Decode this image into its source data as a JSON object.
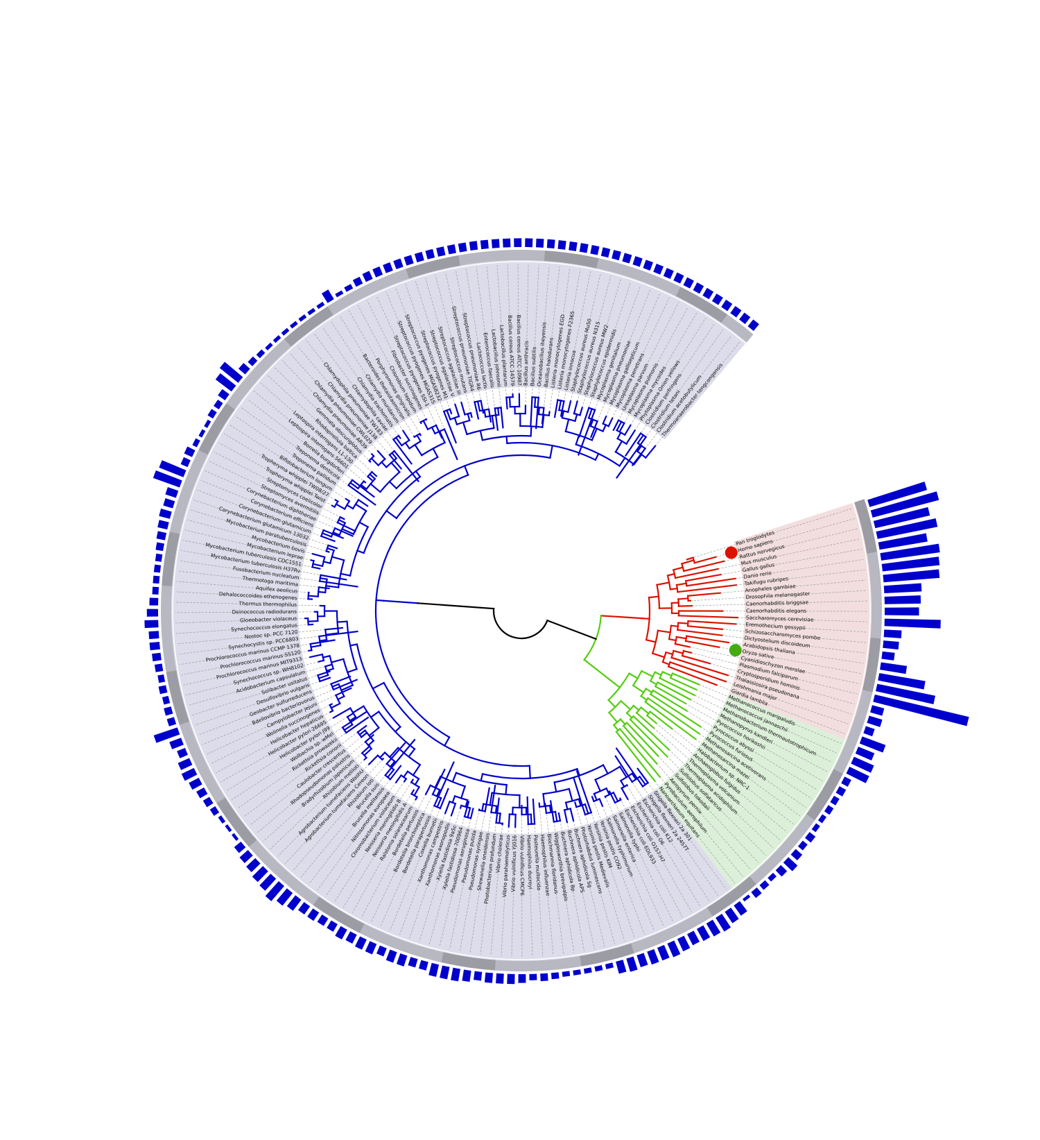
{
  "colors": {
    "bacteria": "#0000cc",
    "eukaryota": "#dd1100",
    "archaea": "#55cc11",
    "root": "#000000",
    "bacteria_bg": "#dcdcea",
    "eukaryota_bg": "#f2dede",
    "archaea_bg": "#dcefd9",
    "bar": "#0000cc",
    "ring": "#b8b8c2",
    "marker_human": "#dd1100",
    "marker_plant": "#44aa11"
  },
  "highlighted_leaves": [
    {
      "taxon": "Homo sapiens",
      "marker": "red-dot"
    },
    {
      "taxon": "Oryza sativa",
      "marker": "green-dot"
    }
  ],
  "leaves": [
    {
      "name": "Pan troglodytes",
      "clade": "eukaryota",
      "bar": 96
    },
    {
      "name": "Homo sapiens",
      "clade": "eukaryota",
      "bar": 110
    },
    {
      "name": "Rattus norvegicus",
      "clade": "eukaryota",
      "bar": 90
    },
    {
      "name": "Mus musculus",
      "clade": "eukaryota",
      "bar": 98
    },
    {
      "name": "Gallus gallus",
      "clade": "eukaryota",
      "bar": 78
    },
    {
      "name": "Danio rerio",
      "clade": "eukaryota",
      "bar": 95
    },
    {
      "name": "Takifugu rubripes",
      "clade": "eukaryota",
      "bar": 92
    },
    {
      "name": "Anopheles gambiae",
      "clade": "eukaryota",
      "bar": 90
    },
    {
      "name": "Drosophila melanogaster",
      "clade": "eukaryota",
      "bar": 60
    },
    {
      "name": "Caenorhabditis briggsae",
      "clade": "eukaryota",
      "bar": 58
    },
    {
      "name": "Caenorhabditis elegans",
      "clade": "eukaryota",
      "bar": 55
    },
    {
      "name": "Saccharomyces cerevisiae",
      "clade": "eukaryota",
      "bar": 90
    },
    {
      "name": "Eremothecium gossypii",
      "clade": "eukaryota",
      "bar": 28
    },
    {
      "name": "Schizosaccharomyces pombe",
      "clade": "eukaryota",
      "bar": 25
    },
    {
      "name": "Dictyostelium discoideum",
      "clade": "eukaryota",
      "bar": 20
    },
    {
      "name": "Arabidopsis thaliana",
      "clade": "eukaryota",
      "bar": 42
    },
    {
      "name": "Oryza sativa",
      "clade": "eukaryota",
      "bar": 75
    },
    {
      "name": "Cyanidioschyzon merolae",
      "clade": "eukaryota",
      "bar": 95
    },
    {
      "name": "Plasmodium falciparum",
      "clade": "eukaryota",
      "bar": 155
    },
    {
      "name": "Cryptosporidium hominis",
      "clade": "eukaryota",
      "bar": 20
    },
    {
      "name": "Thalassiosira pseudonana",
      "clade": "eukaryota",
      "bar": 22
    },
    {
      "name": "Leishmania major",
      "clade": "eukaryota",
      "bar": 15
    },
    {
      "name": "Giardia lamblia",
      "clade": "eukaryota",
      "bar": 40
    },
    {
      "name": "Methanococcus maripaludis",
      "clade": "archaea",
      "bar": 28
    },
    {
      "name": "Methanococcus jannaschii",
      "clade": "archaea",
      "bar": 35
    },
    {
      "name": "Methanobacterium thermautotrophicum",
      "clade": "archaea",
      "bar": 35
    },
    {
      "name": "Methanopyrus kandleri",
      "clade": "archaea",
      "bar": 12
    },
    {
      "name": "Pyrococcus horikoshii",
      "clade": "archaea",
      "bar": 12
    },
    {
      "name": "Pyrococcus abyssi",
      "clade": "archaea",
      "bar": 10
    },
    {
      "name": "Pyrococcus furiosus",
      "clade": "archaea",
      "bar": 10
    },
    {
      "name": "Methanosarcina acetivorans",
      "clade": "archaea",
      "bar": 8
    },
    {
      "name": "Methanosarcina mazei",
      "clade": "archaea",
      "bar": 8
    },
    {
      "name": "Halobacterium sp. NRC-1",
      "clade": "archaea",
      "bar": 12
    },
    {
      "name": "Archaeoglobus fulgidus",
      "clade": "archaea",
      "bar": 10
    },
    {
      "name": "Thermoplasma volcanium",
      "clade": "archaea",
      "bar": 14
    },
    {
      "name": "Thermoplasma acidophilum",
      "clade": "archaea",
      "bar": 20
    },
    {
      "name": "Sulfolobus solfataricus",
      "clade": "archaea",
      "bar": 14
    },
    {
      "name": "Sulfolobus tokodaii",
      "clade": "archaea",
      "bar": 8
    },
    {
      "name": "Aeropyrum pernix",
      "clade": "archaea",
      "bar": 10
    },
    {
      "name": "Pyrobaculum aerophilum",
      "clade": "archaea",
      "bar": 12
    },
    {
      "name": "Nanoarchaeum equitans",
      "clade": "archaea",
      "bar": 5
    },
    {
      "name": "Shigella flexneri 2a 301",
      "clade": "bacteria",
      "bar": 20
    },
    {
      "name": "Shigella flexneri 2a 2457T",
      "clade": "bacteria",
      "bar": 22
    },
    {
      "name": "Escherichia coli K12",
      "clade": "bacteria",
      "bar": 26
    },
    {
      "name": "Escherichia coli O6",
      "clade": "bacteria",
      "bar": 24
    },
    {
      "name": "Escherichia coli O157:H7",
      "clade": "bacteria",
      "bar": 22
    },
    {
      "name": "Escherichia coli EDL933",
      "clade": "bacteria",
      "bar": 20
    },
    {
      "name": "Salmonella typhi",
      "clade": "bacteria",
      "bar": 22
    },
    {
      "name": "Salmonella enterica",
      "clade": "bacteria",
      "bar": 24
    },
    {
      "name": "Salmonella typhimurium",
      "clade": "bacteria",
      "bar": 22
    },
    {
      "name": "Yersinia pestis CO92",
      "clade": "bacteria",
      "bar": 22
    },
    {
      "name": "Yersinia pestis KIM",
      "clade": "bacteria",
      "bar": 20
    },
    {
      "name": "Yersinia pestis Medievalis",
      "clade": "bacteria",
      "bar": 22
    },
    {
      "name": "Photorhabdus luminescens",
      "clade": "bacteria",
      "bar": 20
    },
    {
      "name": "Buchnera aphidicola Sg",
      "clade": "bacteria",
      "bar": 8
    },
    {
      "name": "Buchnera aphidicola APS",
      "clade": "bacteria",
      "bar": 8
    },
    {
      "name": "Buchnera aphidicola Bp",
      "clade": "bacteria",
      "bar": 8
    },
    {
      "name": "Wigglesworthia brevipalpis",
      "clade": "bacteria",
      "bar": 8
    },
    {
      "name": "Blochmannia floridanus",
      "clade": "bacteria",
      "bar": 8
    },
    {
      "name": "Haemophilus influenzae",
      "clade": "bacteria",
      "bar": 10
    },
    {
      "name": "Pasteurella multocida",
      "clade": "bacteria",
      "bar": 12
    },
    {
      "name": "Haemophilus ducreyi",
      "clade": "bacteria",
      "bar": 10
    },
    {
      "name": "Vibrio vulnificus CMCP6",
      "clade": "bacteria",
      "bar": 14
    },
    {
      "name": "Vibrio vulnificus YJ016",
      "clade": "bacteria",
      "bar": 16
    },
    {
      "name": "Vibrio parahaemolyticus",
      "clade": "bacteria",
      "bar": 16
    },
    {
      "name": "Vibrio cholerae",
      "clade": "bacteria",
      "bar": 16
    },
    {
      "name": "Photobacterium profundum",
      "clade": "bacteria",
      "bar": 14
    },
    {
      "name": "Shewanella oneidensis",
      "clade": "bacteria",
      "bar": 18
    },
    {
      "name": "Pseudomonas syringae",
      "clade": "bacteria",
      "bar": 20
    },
    {
      "name": "Pseudomonas putida",
      "clade": "bacteria",
      "bar": 20
    },
    {
      "name": "Pseudomonas aeruginosa",
      "clade": "bacteria",
      "bar": 20
    },
    {
      "name": "Xylella fastidiosa 700964",
      "clade": "bacteria",
      "bar": 14
    },
    {
      "name": "Xylella fastidiosa 9a5c",
      "clade": "bacteria",
      "bar": 14
    },
    {
      "name": "Xanthomonas axonopodis",
      "clade": "bacteria",
      "bar": 18
    },
    {
      "name": "Xanthomonas campestris",
      "clade": "bacteria",
      "bar": 18
    },
    {
      "name": "Coxiella burnetii",
      "clade": "bacteria",
      "bar": 14
    },
    {
      "name": "Bordetella parapertussis",
      "clade": "bacteria",
      "bar": 18
    },
    {
      "name": "Bordetella bronchiseptica",
      "clade": "bacteria",
      "bar": 18
    },
    {
      "name": "Bordetella pertussis",
      "clade": "bacteria",
      "bar": 16
    },
    {
      "name": "Ralstonia solanacearum",
      "clade": "bacteria",
      "bar": 18
    },
    {
      "name": "Neisseria meningitidis A",
      "clade": "bacteria",
      "bar": 14
    },
    {
      "name": "Neisseria meningitidis B",
      "clade": "bacteria",
      "bar": 14
    },
    {
      "name": "Chromobacterium violaceum",
      "clade": "bacteria",
      "bar": 16
    },
    {
      "name": "Nitrosomonas europaea",
      "clade": "bacteria",
      "bar": 16
    },
    {
      "name": "Brucella melitensis",
      "clade": "bacteria",
      "bar": 22
    },
    {
      "name": "Brucella suis",
      "clade": "bacteria",
      "bar": 26
    },
    {
      "name": "Rhizobium loti",
      "clade": "bacteria",
      "bar": 32
    },
    {
      "name": "Agrobacterium tumefaciens Cereon",
      "clade": "bacteria",
      "bar": 26
    },
    {
      "name": "Agrobacterium tumefaciens WashU",
      "clade": "bacteria",
      "bar": 24
    },
    {
      "name": "Rhizobium meliloti",
      "clade": "bacteria",
      "bar": 20
    },
    {
      "name": "Bradyrhizobium japonicum",
      "clade": "bacteria",
      "bar": 18
    },
    {
      "name": "Rhodopseudomonas palustris",
      "clade": "bacteria",
      "bar": 14
    },
    {
      "name": "Caulobacter crescentus",
      "clade": "bacteria",
      "bar": 5
    },
    {
      "name": "Rickettsia conorii",
      "clade": "bacteria",
      "bar": 5
    },
    {
      "name": "Rickettsia prowazekii",
      "clade": "bacteria",
      "bar": 6
    },
    {
      "name": "Wolbachia sp. wMel",
      "clade": "bacteria",
      "bar": 10
    },
    {
      "name": "Helicobacter pylori J99",
      "clade": "bacteria",
      "bar": 12
    },
    {
      "name": "Helicobacter pylori 26695",
      "clade": "bacteria",
      "bar": 14
    },
    {
      "name": "Helicobacter hepaticus",
      "clade": "bacteria",
      "bar": 18
    },
    {
      "name": "Wolinella succinogenes",
      "clade": "bacteria",
      "bar": 22
    },
    {
      "name": "Campylobacter jejuni",
      "clade": "bacteria",
      "bar": 20
    },
    {
      "name": "Bdellovibrio bacteriovorus",
      "clade": "bacteria",
      "bar": 14
    },
    {
      "name": "Geobacter sulfurreducens",
      "clade": "bacteria",
      "bar": 20
    },
    {
      "name": "Desulfovibrio vulgaris",
      "clade": "bacteria",
      "bar": 40
    },
    {
      "name": "Solibacter usitatus",
      "clade": "bacteria",
      "bar": 12
    },
    {
      "name": "Acidobacterium capsulatum",
      "clade": "bacteria",
      "bar": 12
    },
    {
      "name": "Synechococcus sp. WH8102",
      "clade": "bacteria",
      "bar": 10
    },
    {
      "name": "Prochlorococcus marinus MIT9313",
      "clade": "bacteria",
      "bar": 12
    },
    {
      "name": "Prochlorococcus marinus SS120",
      "clade": "bacteria",
      "bar": 10
    },
    {
      "name": "Prochlorococcus marinus CCMP 1378",
      "clade": "bacteria",
      "bar": 12
    },
    {
      "name": "Synechocystis sp. PCC6803",
      "clade": "bacteria",
      "bar": 14
    },
    {
      "name": "Nostoc sp. PCC 7120",
      "clade": "bacteria",
      "bar": 16
    },
    {
      "name": "Synechococcus elongatus",
      "clade": "bacteria",
      "bar": 16
    },
    {
      "name": "Gloeobacter violaceus",
      "clade": "bacteria",
      "bar": 22
    },
    {
      "name": "Deinococcus radiodurans",
      "clade": "bacteria",
      "bar": 18
    },
    {
      "name": "Thermus thermophilus",
      "clade": "bacteria",
      "bar": 14
    },
    {
      "name": "Dehalococcoides ethenogenes",
      "clade": "bacteria",
      "bar": 10
    },
    {
      "name": "Aquifex aeolicus",
      "clade": "bacteria",
      "bar": 10
    },
    {
      "name": "Thermotoga maritima",
      "clade": "bacteria",
      "bar": 10
    },
    {
      "name": "Fusobacterium nucleatum",
      "clade": "bacteria",
      "bar": 10
    },
    {
      "name": "Mycobacterium tuberculosis H37Rv",
      "clade": "bacteria",
      "bar": 12
    },
    {
      "name": "Mycobacterium tuberculosis CDC1551",
      "clade": "bacteria",
      "bar": 14
    },
    {
      "name": "Mycobacterium leprae",
      "clade": "bacteria",
      "bar": 16
    },
    {
      "name": "Mycobacterium bovis",
      "clade": "bacteria",
      "bar": 18
    },
    {
      "name": "Mycobacterium paratuberculosis",
      "clade": "bacteria",
      "bar": 16
    },
    {
      "name": "Corynebacterium glutamicum 13032",
      "clade": "bacteria",
      "bar": 18
    },
    {
      "name": "Corynebacterium glutamicum",
      "clade": "bacteria",
      "bar": 45
    },
    {
      "name": "Corynebacterium efficiens",
      "clade": "bacteria",
      "bar": 42
    },
    {
      "name": "Corynebacterium diphtheriae",
      "clade": "bacteria",
      "bar": 12
    },
    {
      "name": "Streptomyces avermitilis",
      "clade": "bacteria",
      "bar": 14
    },
    {
      "name": "Streptomyces coelicolor",
      "clade": "bacteria",
      "bar": 8
    },
    {
      "name": "Tropheryma whipplei Twist",
      "clade": "bacteria",
      "bar": 6
    },
    {
      "name": "Tropheryma whipplei TW08/27",
      "clade": "bacteria",
      "bar": 6
    },
    {
      "name": "Bifidobacterium longum",
      "clade": "bacteria",
      "bar": 10
    },
    {
      "name": "Treponema pallidum",
      "clade": "bacteria",
      "bar": 10
    },
    {
      "name": "Treponema denticola",
      "clade": "bacteria",
      "bar": 14
    },
    {
      "name": "Borrelia burgdorferi",
      "clade": "bacteria",
      "bar": 32
    },
    {
      "name": "Leptospira interrogans 56601",
      "clade": "bacteria",
      "bar": 38
    },
    {
      "name": "Leptospira interrogans L1-130",
      "clade": "bacteria",
      "bar": 14
    },
    {
      "name": "Rhodopirellula baltica",
      "clade": "bacteria",
      "bar": 10
    },
    {
      "name": "Gemmata obscuriglobus",
      "clade": "bacteria",
      "bar": 8
    },
    {
      "name": "Chlamydia pneumoniae AR39",
      "clade": "bacteria",
      "bar": 6
    },
    {
      "name": "Chlamydia pneumoniae CWL029",
      "clade": "bacteria",
      "bar": 6
    },
    {
      "name": "Chlamydia pneumoniae J138",
      "clade": "bacteria",
      "bar": 6
    },
    {
      "name": "Chlamydophila pneumoniae TW183",
      "clade": "bacteria",
      "bar": 6
    },
    {
      "name": "Chlamydophila caviae",
      "clade": "bacteria",
      "bar": 6
    },
    {
      "name": "Chlamydia trachomatis",
      "clade": "bacteria",
      "bar": 6
    },
    {
      "name": "Chlamydia muridarum",
      "clade": "bacteria",
      "bar": 6
    },
    {
      "name": "Bacteroides thetaiotaomicron",
      "clade": "bacteria",
      "bar": 18
    },
    {
      "name": "Porphyromonas gingivalis",
      "clade": "bacteria",
      "bar": 6
    },
    {
      "name": "Chlorobium tepidum",
      "clade": "bacteria",
      "bar": 8
    },
    {
      "name": "Fibrobacter succinogenes",
      "clade": "bacteria",
      "bar": 12
    },
    {
      "name": "Streptococcus pyogenes SSI-1",
      "clade": "bacteria",
      "bar": 14
    },
    {
      "name": "Streptococcus pyogenes MGAS315",
      "clade": "bacteria",
      "bar": 14
    },
    {
      "name": "Streptococcus pyogenes MGAS8232",
      "clade": "bacteria",
      "bar": 14
    },
    {
      "name": "Streptococcus pyogenes M1",
      "clade": "bacteria",
      "bar": 14
    },
    {
      "name": "Streptococcus agalactiae V",
      "clade": "bacteria",
      "bar": 14
    },
    {
      "name": "Streptococcus agalactiae III",
      "clade": "bacteria",
      "bar": 14
    },
    {
      "name": "Streptococcus mutans",
      "clade": "bacteria",
      "bar": 14
    },
    {
      "name": "Streptococcus pneumoniae TIGR4",
      "clade": "bacteria",
      "bar": 14
    },
    {
      "name": "Streptococcus pneumoniae R6",
      "clade": "bacteria",
      "bar": 14
    },
    {
      "name": "Lactococcus lactis",
      "clade": "bacteria",
      "bar": 14
    },
    {
      "name": "Enterococcus faecalis",
      "clade": "bacteria",
      "bar": 14
    },
    {
      "name": "Lactobacillus johnsonii",
      "clade": "bacteria",
      "bar": 14
    },
    {
      "name": "Lactobacillus plantarum",
      "clade": "bacteria",
      "bar": 14
    },
    {
      "name": "Bacillus cereus ATCC 14579",
      "clade": "bacteria",
      "bar": 14
    },
    {
      "name": "Bacillus cereus ATCC 10987",
      "clade": "bacteria",
      "bar": 14
    },
    {
      "name": "Bacillus anthracis",
      "clade": "bacteria",
      "bar": 14
    },
    {
      "name": "Bacillus subtilis",
      "clade": "bacteria",
      "bar": 14
    },
    {
      "name": "Oceanobacillus iheyensis",
      "clade": "bacteria",
      "bar": 14
    },
    {
      "name": "Bacillus halodurans",
      "clade": "bacteria",
      "bar": 14
    },
    {
      "name": "Listeria monocytogenes EGD",
      "clade": "bacteria",
      "bar": 14
    },
    {
      "name": "Listeria monocytogenes F2365",
      "clade": "bacteria",
      "bar": 14
    },
    {
      "name": "Listeria innocua",
      "clade": "bacteria",
      "bar": 14
    },
    {
      "name": "Staphylococcus aureus Mu50",
      "clade": "bacteria",
      "bar": 14
    },
    {
      "name": "Staphylococcus aureus N315",
      "clade": "bacteria",
      "bar": 14
    },
    {
      "name": "Staphylococcus aureus MW2",
      "clade": "bacteria",
      "bar": 14
    },
    {
      "name": "Staphylococcus epidermidis",
      "clade": "bacteria",
      "bar": 14
    },
    {
      "name": "Mycoplasma genitalium",
      "clade": "bacteria",
      "bar": 14
    },
    {
      "name": "Mycoplasma pneumoniae",
      "clade": "bacteria",
      "bar": 14
    },
    {
      "name": "Mycoplasma gallisepticum",
      "clade": "bacteria",
      "bar": 14
    },
    {
      "name": "Mycoplasma penetrans",
      "clade": "bacteria",
      "bar": 14
    },
    {
      "name": "Ureaplasma parvum",
      "clade": "bacteria",
      "bar": 14
    },
    {
      "name": "Mycoplasma pulmonis",
      "clade": "bacteria",
      "bar": 14
    },
    {
      "name": "Mycoplasma mycoides",
      "clade": "bacteria",
      "bar": 14
    },
    {
      "name": "Phytoplasma Onion yellows",
      "clade": "bacteria",
      "bar": 14
    },
    {
      "name": "Clostridium perfringens",
      "clade": "bacteria",
      "bar": 14
    },
    {
      "name": "Clostridium tetani",
      "clade": "bacteria",
      "bar": 14
    },
    {
      "name": "Clostridium acetobutylicum",
      "clade": "bacteria",
      "bar": 14
    },
    {
      "name": "Thermoanaerobacter tengcongensis",
      "clade": "bacteria",
      "bar": 14
    }
  ]
}
